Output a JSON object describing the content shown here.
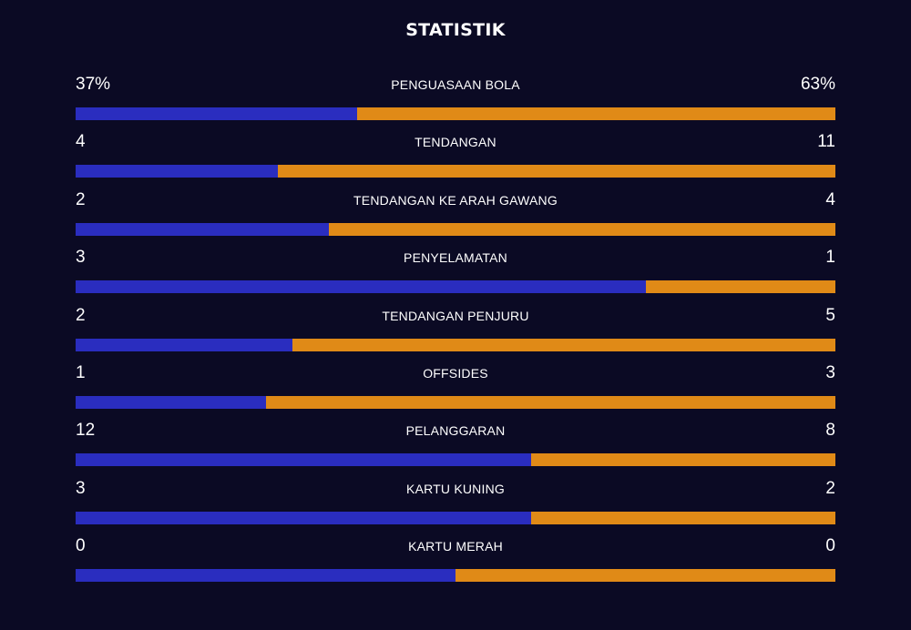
{
  "title": "STATISTIK",
  "colors": {
    "background": "#0b0a24",
    "home": "#2a2dbf",
    "away": "#e08a17",
    "text": "#ffffff"
  },
  "stats": [
    {
      "label": "PENGUASAAN BOLA",
      "home": "37%",
      "away": "63%",
      "home_share": 0.37
    },
    {
      "label": "TENDANGAN",
      "home": "4",
      "away": "11",
      "home_share": 0.2667
    },
    {
      "label": "TENDANGAN KE ARAH GAWANG",
      "home": "2",
      "away": "4",
      "home_share": 0.3333
    },
    {
      "label": "PENYELAMATAN",
      "home": "3",
      "away": "1",
      "home_share": 0.75
    },
    {
      "label": "TENDANGAN PENJURU",
      "home": "2",
      "away": "5",
      "home_share": 0.2857
    },
    {
      "label": "OFFSIDES",
      "home": "1",
      "away": "3",
      "home_share": 0.25
    },
    {
      "label": "PELANGGARAN",
      "home": "12",
      "away": "8",
      "home_share": 0.6
    },
    {
      "label": "KARTU KUNING",
      "home": "3",
      "away": "2",
      "home_share": 0.6
    },
    {
      "label": "KARTU MERAH",
      "home": "0",
      "away": "0",
      "home_share": 0.5
    }
  ]
}
